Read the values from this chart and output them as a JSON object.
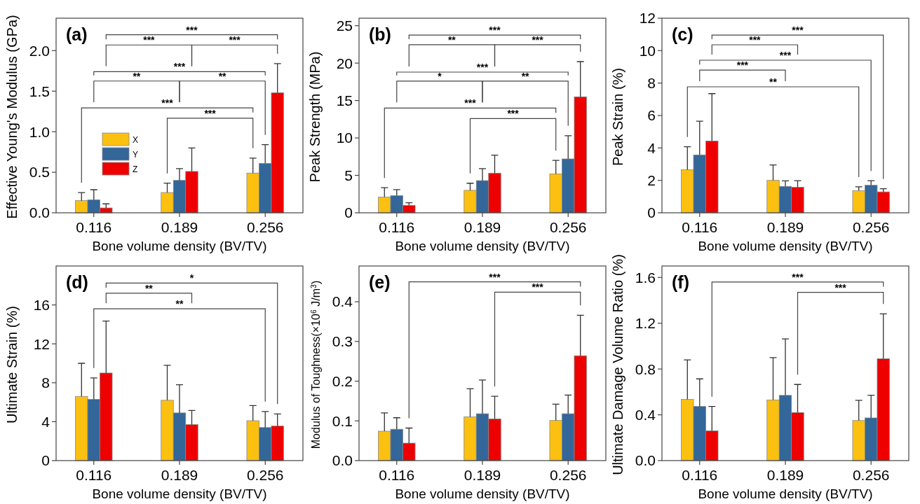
{
  "chart_data": [
    {
      "type": "bar",
      "title": "(a)",
      "xlabel": "Bone volume density (BV/TV)",
      "ylabel": "Effective Young's Modulus (GPa)",
      "categories": [
        "0.116",
        "0.189",
        "0.256"
      ],
      "ylim": [
        0,
        2.4
      ],
      "yticks": [
        {
          "value": 0,
          "label": "0.0"
        },
        0.5,
        {
          "value": 1,
          "label": "1.0"
        },
        1.5,
        {
          "value": 2,
          "label": "2.0"
        }
      ],
      "legend": "left",
      "annotations": [
        "***",
        "***",
        "***",
        "***",
        "**",
        "**",
        "***",
        "***"
      ],
      "series": [
        {
          "name": "X",
          "color": "#fcc010",
          "values": [
            0.15,
            0.25,
            0.49
          ],
          "errors": [
            [
              0.15,
              0.25
            ],
            [
              0.25,
              0.365
            ],
            [
              0.49,
              0.675
            ]
          ]
        },
        {
          "name": "Y",
          "color": "#336699",
          "values": [
            0.16,
            0.4,
            0.61
          ],
          "errors": [
            [
              0.16,
              0.285
            ],
            [
              0.4,
              0.545
            ],
            [
              0.61,
              0.84
            ]
          ]
        },
        {
          "name": "Z",
          "color": "#ee0000",
          "values": [
            0.06,
            0.51,
            1.48
          ],
          "errors": [
            [
              0.06,
              0.11
            ],
            [
              0.51,
              0.8
            ],
            [
              1.48,
              1.84
            ]
          ]
        }
      ]
    },
    {
      "type": "bar",
      "title": "(b)",
      "xlabel": "Bone volume density (BV/TV)",
      "ylabel": "Peak Strength (MPa)",
      "categories": [
        "0.116",
        "0.189",
        "0.256"
      ],
      "ylim": [
        0,
        26
      ],
      "yticks": [
        0,
        5,
        10,
        15,
        20,
        25
      ],
      "annotations": [
        "***",
        "**",
        "***",
        "***",
        "*",
        "**",
        "***",
        "***"
      ],
      "series": [
        {
          "color": "#fcc010",
          "values": [
            2.1,
            3.0,
            5.2
          ],
          "errors": [
            [
              2.1,
              3.35
            ],
            [
              3.0,
              3.95
            ],
            [
              5.2,
              7.0
            ]
          ]
        },
        {
          "color": "#336699",
          "values": [
            2.3,
            4.3,
            7.2
          ],
          "errors": [
            [
              2.3,
              3.1
            ],
            [
              4.3,
              5.9
            ],
            [
              7.2,
              10.3
            ]
          ]
        },
        {
          "color": "#ee0000",
          "values": [
            1.0,
            5.3,
            15.5
          ],
          "errors": [
            [
              1.0,
              1.35
            ],
            [
              5.3,
              7.7
            ],
            [
              15.5,
              20.2
            ]
          ]
        }
      ]
    },
    {
      "type": "bar",
      "title": "(c)",
      "xlabel": "Bone volume density (BV/TV)",
      "ylabel": "Peak Strain (%)",
      "categories": [
        "0.116",
        "0.189",
        "0.256"
      ],
      "ylim": [
        0,
        12
      ],
      "yticks": [
        0,
        2,
        4,
        6,
        8,
        10,
        12
      ],
      "annotations": [
        "***",
        "***",
        "***",
        "***",
        "**"
      ],
      "series": [
        {
          "color": "#fcc010",
          "values": [
            2.66,
            2.0,
            1.37
          ],
          "errors": [
            [
              2.66,
              4.07
            ],
            [
              2.0,
              2.95
            ],
            [
              1.37,
              1.6
            ]
          ]
        },
        {
          "color": "#336699",
          "values": [
            3.57,
            1.63,
            1.7
          ],
          "errors": [
            [
              3.57,
              5.65
            ],
            [
              1.63,
              1.97
            ],
            [
              1.7,
              1.98
            ]
          ]
        },
        {
          "color": "#ee0000",
          "values": [
            4.43,
            1.58,
            1.29
          ],
          "errors": [
            [
              4.43,
              7.35
            ],
            [
              1.58,
              1.98
            ],
            [
              1.29,
              1.48
            ]
          ]
        }
      ]
    },
    {
      "type": "bar",
      "title": "(d)",
      "xlabel": "Bone volume density (BV/TV)",
      "ylabel": "Ultimate Strain (%)",
      "categories": [
        "0.116",
        "0.189",
        "0.256"
      ],
      "ylim": [
        0,
        20
      ],
      "yticks": [
        0,
        4,
        8,
        12,
        16
      ],
      "annotations": [
        "*",
        "**",
        "**"
      ],
      "series": [
        {
          "color": "#fcc010",
          "values": [
            6.6,
            6.2,
            4.1
          ],
          "errors": [
            [
              6.6,
              10.0
            ],
            [
              6.2,
              9.8
            ],
            [
              4.1,
              5.65
            ]
          ]
        },
        {
          "color": "#336699",
          "values": [
            6.3,
            4.9,
            3.4
          ],
          "errors": [
            [
              6.3,
              8.5
            ],
            [
              4.9,
              7.8
            ],
            [
              3.4,
              5.05
            ]
          ]
        },
        {
          "color": "#ee0000",
          "values": [
            9.0,
            3.7,
            3.55
          ],
          "errors": [
            [
              9.0,
              14.35
            ],
            [
              3.7,
              5.15
            ],
            [
              3.55,
              4.8
            ]
          ]
        }
      ]
    },
    {
      "type": "bar",
      "title": "(e)",
      "xlabel": "Bone volume density (BV/TV)",
      "ylabel": "Modulus of Toughness(×10$^{6}$ J/m$^{3}$)",
      "categories": [
        "0.116",
        "0.189",
        "0.256"
      ],
      "ylim": [
        0,
        0.49
      ],
      "yticks": [
        {
          "value": 0,
          "label": "0.0"
        },
        0.1,
        0.2,
        0.3,
        0.4
      ],
      "annotations": [
        "***",
        "***"
      ],
      "series": [
        {
          "color": "#fcc010",
          "values": [
            0.074,
            0.11,
            0.101
          ],
          "errors": [
            [
              0.074,
              0.12
            ],
            [
              0.11,
              0.181
            ],
            [
              0.101,
              0.142
            ]
          ]
        },
        {
          "color": "#336699",
          "values": [
            0.079,
            0.118,
            0.118
          ],
          "errors": [
            [
              0.079,
              0.108
            ],
            [
              0.118,
              0.203
            ],
            [
              0.118,
              0.165
            ]
          ]
        },
        {
          "color": "#ee0000",
          "values": [
            0.044,
            0.105,
            0.264
          ],
          "errors": [
            [
              0.044,
              0.082
            ],
            [
              0.105,
              0.162
            ],
            [
              0.264,
              0.366
            ]
          ]
        }
      ]
    },
    {
      "type": "bar",
      "title": "(f)",
      "xlabel": "Bone volume density (BV/TV)",
      "ylabel": "Ultimate Damage Volume Ratio (%)",
      "categories": [
        "0.116",
        "0.189",
        "0.256"
      ],
      "ylim": [
        0,
        1.7
      ],
      "yticks": [
        {
          "value": 0,
          "label": "0.0"
        },
        0.4,
        0.8,
        1.2,
        1.6
      ],
      "annotations": [
        "***",
        "***"
      ],
      "series": [
        {
          "color": "#fcc010",
          "values": [
            0.535,
            0.53,
            0.35
          ],
          "errors": [
            [
              0.535,
              0.88
            ],
            [
              0.53,
              0.9
            ],
            [
              0.35,
              0.527
            ]
          ]
        },
        {
          "color": "#336699",
          "values": [
            0.473,
            0.57,
            0.373
          ],
          "errors": [
            [
              0.473,
              0.714
            ],
            [
              0.57,
              1.063
            ],
            [
              0.373,
              0.571
            ]
          ]
        },
        {
          "color": "#ee0000",
          "values": [
            0.26,
            0.42,
            0.89
          ],
          "errors": [
            [
              0.26,
              0.473
            ],
            [
              0.42,
              0.665
            ],
            [
              0.89,
              1.282
            ]
          ]
        }
      ]
    }
  ]
}
